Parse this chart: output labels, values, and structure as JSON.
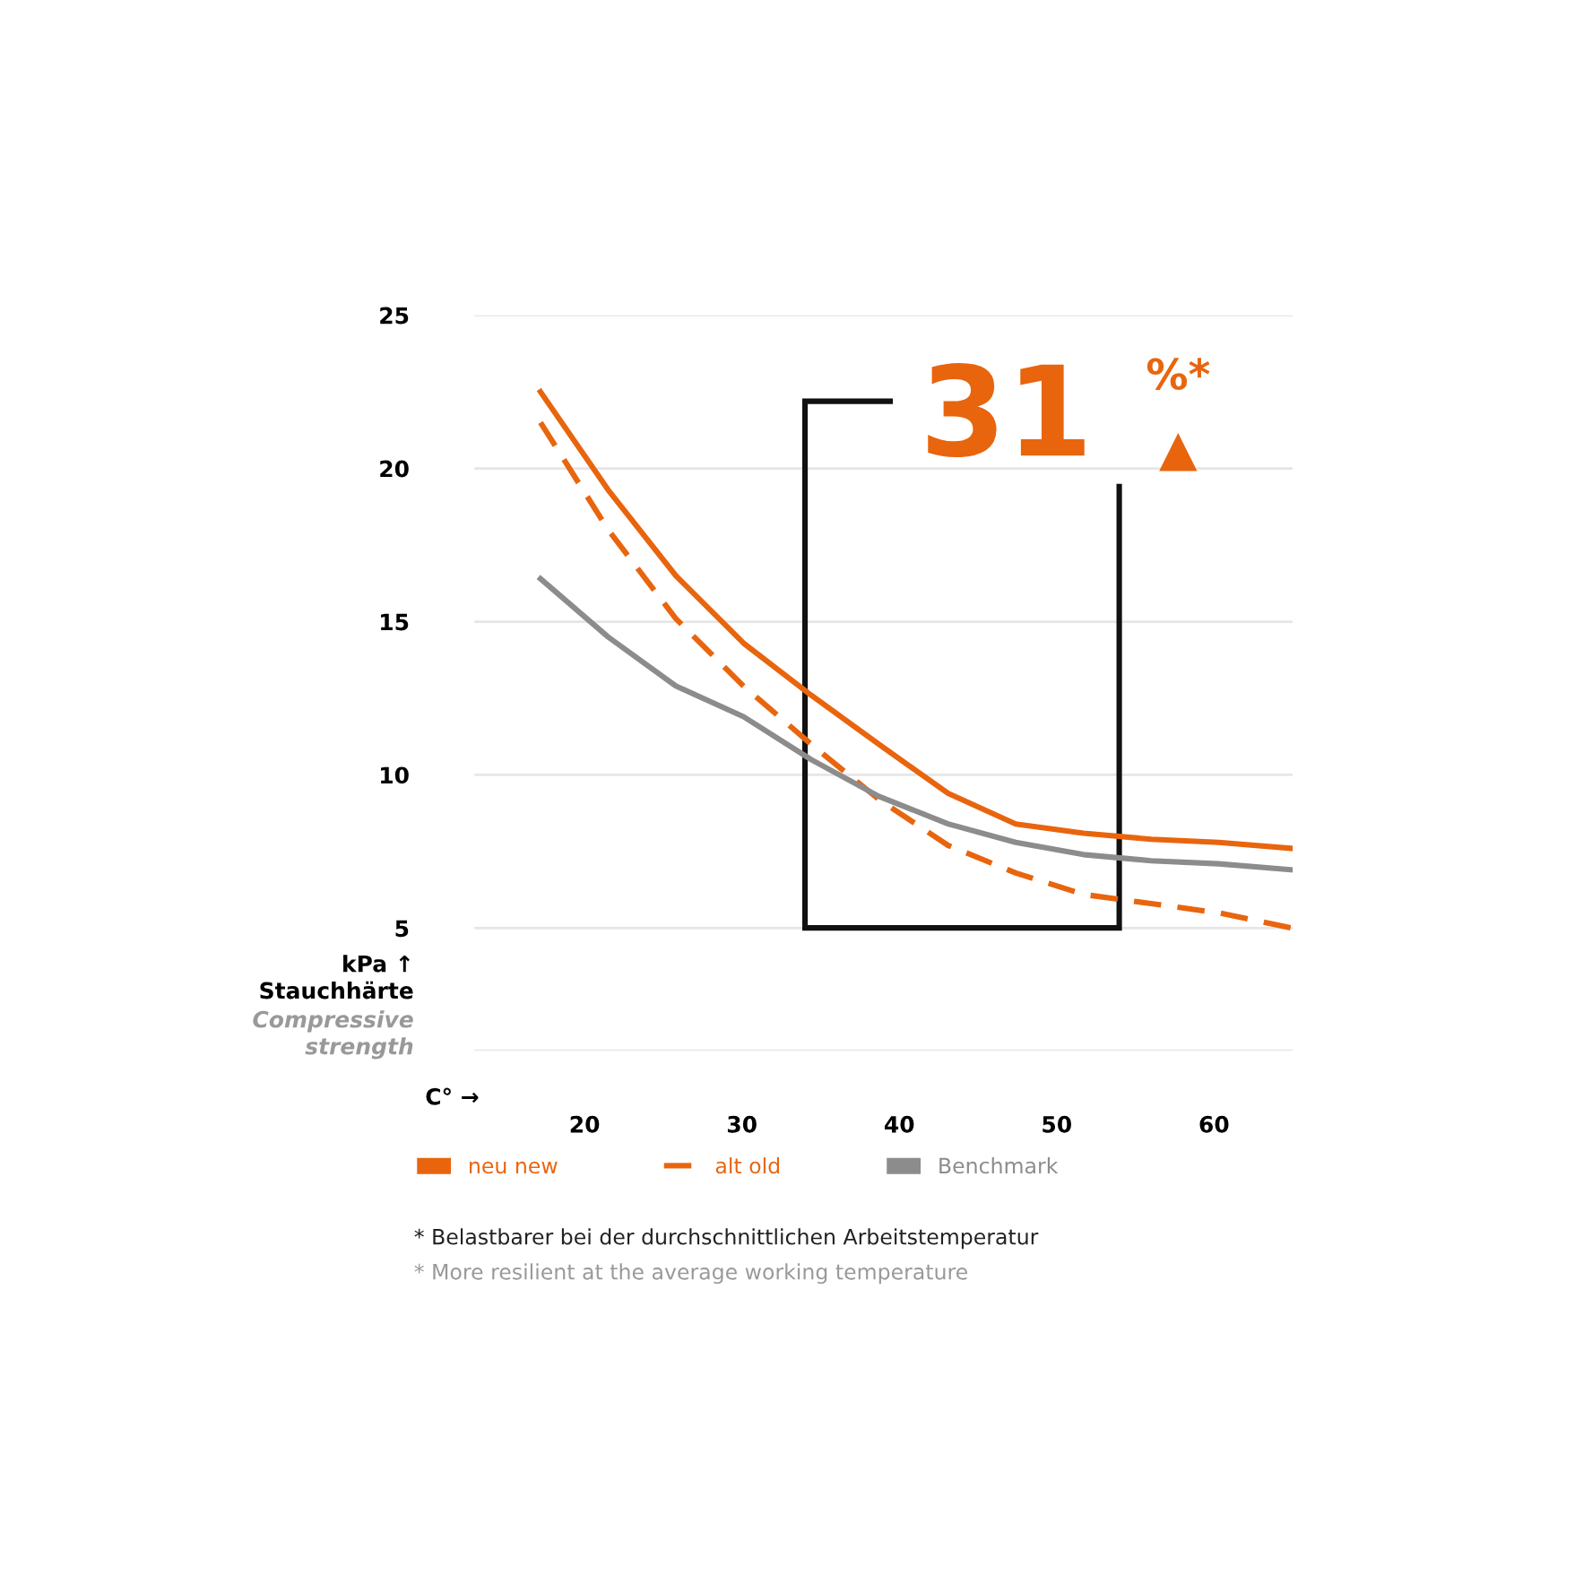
{
  "chart_data": {
    "type": "line",
    "xlabel": "C° →",
    "ylabel": "kPa ↑\nStauchhärte",
    "xlim": [
      13,
      65
    ],
    "ylim": [
      1,
      25
    ],
    "xticks": [
      20,
      30,
      40,
      50,
      60
    ],
    "yticks": [
      {
        "value": 1,
        "label": null
      },
      5,
      10,
      15,
      20,
      25
    ],
    "grid": "y",
    "legend": "bottom",
    "marker": "none",
    "annotations": [
      "Compressive\nstrength",
      "31",
      "%*",
      "▲",
      "* Belastbarer bei der durchschnittlichen Arbeitstemperatur",
      "* More resilient at the average working temperature"
    ],
    "series": [
      {
        "name": "neu new",
        "color": "#e8650e",
        "line_style": "solid",
        "x": [
          17.2,
          21.5,
          25.8,
          30.1,
          34.4,
          38.7,
          43.1,
          47.4,
          51.7,
          56.0,
          60.3,
          65.0
        ],
        "values": [
          22.5,
          19.3,
          16.5,
          14.3,
          12.6,
          11.0,
          9.4,
          8.4,
          8.1,
          7.9,
          7.8,
          7.6
        ]
      },
      {
        "name": "alt old",
        "color": "#e8650e",
        "line_style": "dashed",
        "x": [
          17.2,
          21.5,
          25.8,
          30.1,
          34.4,
          38.7,
          43.1,
          47.4,
          51.7,
          56.0,
          60.3,
          65.0
        ],
        "values": [
          21.5,
          18.0,
          15.1,
          12.9,
          11.0,
          9.2,
          7.7,
          6.8,
          6.1,
          5.8,
          5.5,
          5.0
        ]
      },
      {
        "name": "Benchmark",
        "color": "#8c8c8c",
        "line_style": "solid",
        "x": [
          17.2,
          21.5,
          25.8,
          30.1,
          34.4,
          38.7,
          43.1,
          47.4,
          51.7,
          56.0,
          60.3,
          65.0
        ],
        "values": [
          16.4,
          14.5,
          12.9,
          11.9,
          10.5,
          9.3,
          8.4,
          7.8,
          7.4,
          7.2,
          7.1,
          6.9
        ]
      }
    ]
  }
}
